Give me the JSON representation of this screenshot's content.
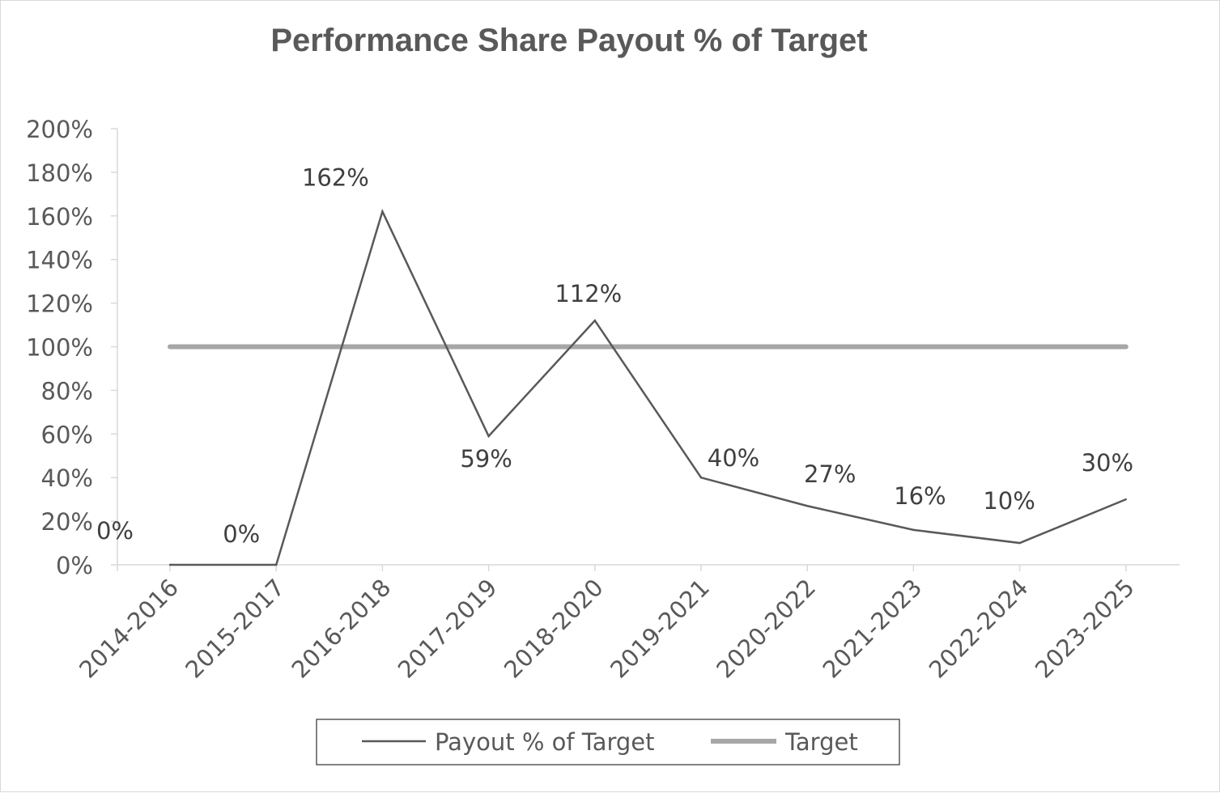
{
  "chart_data": {
    "type": "line",
    "title": "Performance Share Payout % of Target",
    "xlabel": "",
    "ylabel": "",
    "categories": [
      "2014-2016",
      "2015-2017",
      "2016-2018",
      "2017-2019",
      "2018-2020",
      "2019-2021",
      "2020-2022",
      "2021-2023",
      "2022-2024",
      "2023-2025"
    ],
    "series": [
      {
        "name": "Payout % of Target",
        "values": [
          0,
          0,
          162,
          59,
          112,
          40,
          27,
          16,
          10,
          30
        ],
        "data_labels": [
          "0%",
          "0%",
          "162%",
          "59%",
          "112%",
          "40%",
          "27%",
          "16%",
          "10%",
          "30%"
        ],
        "color": "#595959"
      },
      {
        "name": "Target",
        "values": [
          100,
          100,
          100,
          100,
          100,
          100,
          100,
          100,
          100,
          100
        ],
        "color": "#a6a6a6"
      }
    ],
    "ylim": [
      0,
      200
    ],
    "y_ticks": [
      "0%",
      "20%",
      "40%",
      "60%",
      "80%",
      "100%",
      "120%",
      "140%",
      "160%",
      "180%",
      "200%"
    ],
    "grid": false,
    "legend_position": "bottom"
  }
}
